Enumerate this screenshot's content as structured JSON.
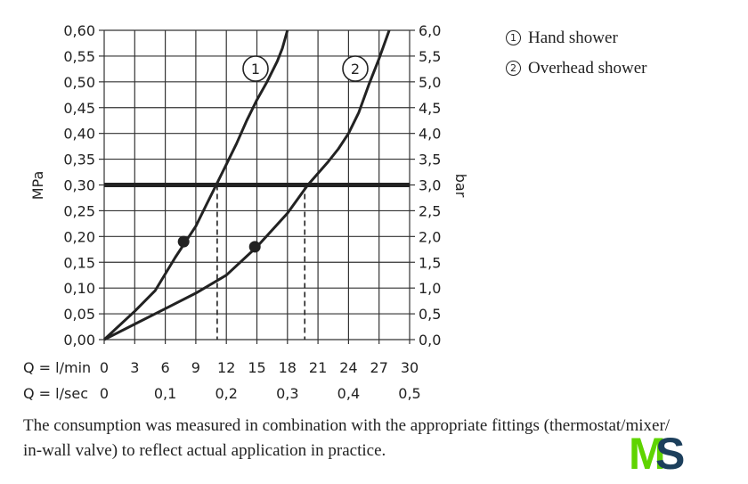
{
  "chart_data": {
    "type": "line",
    "ylabel_left": "MPa",
    "ylabel_right": "bar",
    "yticks_left": [
      "0,00",
      "0,05",
      "0,10",
      "0,15",
      "0,20",
      "0,25",
      "0,30",
      "0,35",
      "0,40",
      "0,45",
      "0,50",
      "0,55",
      "0,60"
    ],
    "yticks_right": [
      "0,0",
      "0,5",
      "1,0",
      "1,5",
      "2,0",
      "2,5",
      "3,0",
      "3,5",
      "4,0",
      "4,5",
      "5,0",
      "5,5",
      "6,0"
    ],
    "ylim": [
      0,
      0.6
    ],
    "xlim": [
      0,
      30
    ],
    "x_axis_lmin": {
      "label": "Q = l/min",
      "ticks": [
        "0",
        "3",
        "6",
        "9",
        "12",
        "15",
        "18",
        "21",
        "24",
        "27",
        "30"
      ],
      "values": [
        0,
        3,
        6,
        9,
        12,
        15,
        18,
        21,
        24,
        27,
        30
      ]
    },
    "x_axis_lsec": {
      "label": "Q = l/sec",
      "ticks": [
        "0",
        "0,1",
        "0,2",
        "0,3",
        "0,4",
        "0,5"
      ],
      "values": [
        0,
        6,
        12,
        18,
        24,
        30
      ]
    },
    "reference_line_y": 0.3,
    "series": [
      {
        "name": "1",
        "x": [
          0,
          3,
          5,
          7,
          8,
          9,
          10,
          11,
          12,
          13,
          14,
          15,
          16,
          17,
          17.5,
          18
        ],
        "y": [
          0,
          0.055,
          0.095,
          0.16,
          0.19,
          0.22,
          0.26,
          0.3,
          0.34,
          0.38,
          0.425,
          0.465,
          0.5,
          0.54,
          0.565,
          0.6
        ],
        "marker": {
          "x": 7.8,
          "y": 0.19
        },
        "drop_x": 11.1
      },
      {
        "name": "2",
        "x": [
          0,
          3,
          6,
          9,
          12,
          15,
          18,
          20,
          22,
          23,
          24,
          25,
          26,
          27,
          28
        ],
        "y": [
          0,
          0.03,
          0.06,
          0.09,
          0.125,
          0.18,
          0.245,
          0.3,
          0.345,
          0.37,
          0.4,
          0.44,
          0.495,
          0.545,
          0.6
        ],
        "marker": {
          "x": 14.8,
          "y": 0.18
        },
        "drop_x": 19.7
      }
    ],
    "grid": true,
    "colors": {
      "line": "#222222",
      "grid": "#333333"
    }
  },
  "legend": [
    {
      "num": "1",
      "label": "Hand shower"
    },
    {
      "num": "2",
      "label": "Overhead shower"
    }
  ],
  "caption_line1": "The consumption was measured in combination with the appropriate fittings (thermostat/mixer/",
  "caption_line2": "in-wall valve) to reflect actual application in practice.",
  "logo": {
    "text_m": "M",
    "text_s": "S",
    "color_m": "#5fd400",
    "color_s": "#1c3f5c"
  }
}
